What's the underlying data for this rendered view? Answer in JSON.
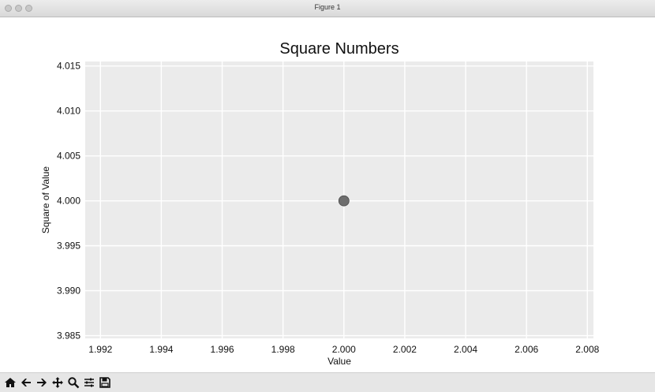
{
  "window": {
    "title": "Figure 1"
  },
  "toolbar": {
    "tools": [
      {
        "icon": "home-icon"
      },
      {
        "icon": "back-arrow-icon"
      },
      {
        "icon": "forward-arrow-icon"
      },
      {
        "icon": "pan-icon"
      },
      {
        "icon": "zoom-icon"
      },
      {
        "icon": "subplots-icon"
      },
      {
        "icon": "save-icon"
      }
    ]
  },
  "colors": {
    "plot_background": "#ebebeb",
    "grid": "#ffffff",
    "point": "#6e6e6e",
    "text": "#111111"
  },
  "chart_data": {
    "type": "scatter",
    "title": "Square Numbers",
    "xlabel": "Value",
    "ylabel": "Square of Value",
    "xlim": [
      1.9915,
      2.0082
    ],
    "ylim": [
      3.9847,
      4.0155
    ],
    "xticks": [
      1.992,
      1.994,
      1.996,
      1.998,
      2.0,
      2.002,
      2.004,
      2.006,
      2.008
    ],
    "yticks": [
      3.985,
      3.99,
      3.995,
      4.0,
      4.005,
      4.01,
      4.015
    ],
    "xtick_labels": [
      "1.992",
      "1.994",
      "1.996",
      "1.998",
      "2.000",
      "2.002",
      "2.004",
      "2.006",
      "2.008"
    ],
    "ytick_labels": [
      "3.985",
      "3.990",
      "3.995",
      "4.000",
      "4.005",
      "4.010",
      "4.015"
    ],
    "grid": true,
    "points": [
      {
        "x": 2.0,
        "y": 4.0
      }
    ]
  }
}
